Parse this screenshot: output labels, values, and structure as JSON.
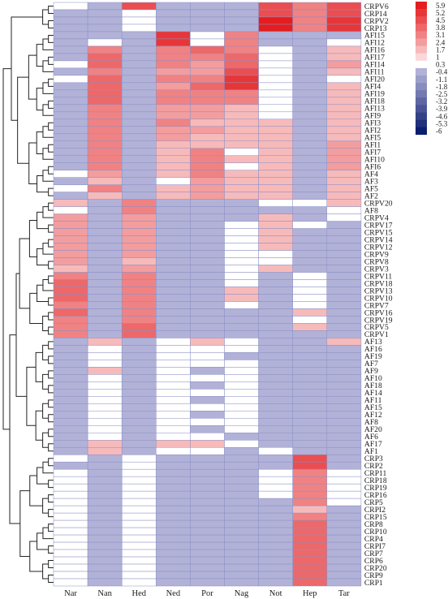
{
  "chart_data": {
    "type": "heatmap",
    "title": "",
    "xlabel": "",
    "ylabel": "",
    "columns": [
      "Nar",
      "Nan",
      "Hed",
      "Ned",
      "Por",
      "Nag",
      "Not",
      "Hep",
      "Tar"
    ],
    "rows": [
      "CRPV6",
      "CRP14",
      "CRPV2",
      "CRP13",
      "AFI15",
      "AFI12",
      "AFI16",
      "AFI17",
      "AFI14",
      "AFI11",
      "AFI20",
      "AFI4",
      "AFI19",
      "AFI18",
      "AFI13",
      "AFI9",
      "AFI3",
      "AFI2",
      "AFI5",
      "AFI1",
      "AFI7",
      "AFI10",
      "AFI6",
      "AF4",
      "AF3",
      "AF5",
      "AF2",
      "CRPV20",
      "AF8",
      "CRPV4",
      "CRPV17",
      "CRPV15",
      "CRPV14",
      "CRPV12",
      "CRPV9",
      "CRPV8",
      "CRPV3",
      "CRPV11",
      "CRPV18",
      "CRPV13",
      "CRPV10",
      "CRPV7",
      "CRPV16",
      "CRPV19",
      "CRPV5",
      "CRPV1",
      "AF13",
      "AF16",
      "AF19",
      "AF7",
      "AF9",
      "AF10",
      "AF18",
      "AF14",
      "AF11",
      "AF15",
      "AF12",
      "AF8",
      "AF20",
      "AF6",
      "AF17",
      "AF1",
      "CRP3",
      "CRP2",
      "CRP11",
      "CRP18",
      "CRP19",
      "CRP16",
      "CRP5",
      "CRPI2",
      "CRP15",
      "CRP8",
      "CRP10",
      "CRP4",
      "CRPI7",
      "CRP7",
      "CRP6",
      "CRP20",
      "CRP9",
      "CRP1"
    ],
    "values": [
      [
        0.3,
        -0.4,
        4.5,
        -0.4,
        -0.4,
        -0.4,
        4.5,
        3.1,
        4.5
      ],
      [
        -0.4,
        -0.4,
        0.3,
        -0.4,
        -0.4,
        -0.4,
        4.5,
        3.1,
        4.5
      ],
      [
        -0.4,
        -0.4,
        0.3,
        -0.4,
        -0.4,
        -0.4,
        5.9,
        3.1,
        5.2
      ],
      [
        -0.4,
        -0.4,
        0.3,
        -0.4,
        -0.4,
        -0.4,
        5.9,
        3.1,
        5.2
      ],
      [
        -0.4,
        -0.4,
        -0.4,
        5.2,
        0.3,
        3.1,
        -0.4,
        -0.4,
        -0.4
      ],
      [
        -0.4,
        0.3,
        -0.4,
        5.2,
        0.3,
        3.1,
        -0.4,
        -0.4,
        0.3
      ],
      [
        -0.4,
        3.1,
        -0.4,
        3.1,
        3.8,
        3.1,
        0.3,
        -0.4,
        1.7
      ],
      [
        -0.4,
        3.8,
        -0.4,
        3.1,
        3.1,
        3.8,
        0.3,
        -0.4,
        1.7
      ],
      [
        0.3,
        3.8,
        -0.4,
        3.1,
        2.4,
        3.8,
        0.3,
        -0.4,
        2.4
      ],
      [
        -0.4,
        3.1,
        -0.4,
        2.4,
        2.4,
        4.5,
        0.3,
        -0.4,
        1.7
      ],
      [
        0.3,
        3.8,
        -0.4,
        3.1,
        3.1,
        5.2,
        0.3,
        -0.4,
        0.3
      ],
      [
        -0.4,
        3.8,
        -0.4,
        2.4,
        3.8,
        5.2,
        0.3,
        -0.4,
        1.7
      ],
      [
        -0.4,
        3.8,
        -0.4,
        3.1,
        3.1,
        3.1,
        0.3,
        -0.4,
        1.7
      ],
      [
        -0.4,
        3.8,
        -0.4,
        3.1,
        3.1,
        3.1,
        0.3,
        -0.4,
        1.7
      ],
      [
        -0.4,
        3.1,
        -0.4,
        2.4,
        2.4,
        1.7,
        0.3,
        -0.4,
        1.7
      ],
      [
        -0.4,
        3.1,
        -0.4,
        2.4,
        2.4,
        1.7,
        0.3,
        -0.4,
        1.7
      ],
      [
        -0.4,
        3.1,
        -0.4,
        3.1,
        1.7,
        1.7,
        1.7,
        -0.4,
        1.7
      ],
      [
        -0.4,
        3.1,
        -0.4,
        2.4,
        2.4,
        1.7,
        1.7,
        -0.4,
        1.7
      ],
      [
        -0.4,
        3.1,
        -0.4,
        2.4,
        1.7,
        1.7,
        1.7,
        -0.4,
        1.7
      ],
      [
        -0.4,
        3.1,
        -0.4,
        1.7,
        1.7,
        1.7,
        1.7,
        -0.4,
        2.4
      ],
      [
        -0.4,
        3.1,
        -0.4,
        1.7,
        3.1,
        0.3,
        1.7,
        -0.4,
        2.4
      ],
      [
        -0.4,
        3.1,
        -0.4,
        1.7,
        3.1,
        1.7,
        1.7,
        -0.4,
        2.4
      ],
      [
        -0.4,
        3.1,
        -0.4,
        1.7,
        3.1,
        0.3,
        1.7,
        -0.4,
        2.4
      ],
      [
        0.3,
        2.4,
        -0.4,
        1.7,
        3.1,
        1.7,
        1.7,
        -0.4,
        1.7
      ],
      [
        -0.4,
        1.7,
        -0.4,
        0.3,
        2.4,
        1.7,
        1.7,
        -0.4,
        1.7
      ],
      [
        0.3,
        3.1,
        -0.4,
        1.7,
        2.4,
        1.7,
        1.7,
        -0.4,
        1.7
      ],
      [
        -0.4,
        1.7,
        -0.4,
        1.7,
        2.4,
        1.7,
        1.7,
        -0.4,
        1.7
      ],
      [
        1.7,
        -0.4,
        3.1,
        -0.4,
        -0.4,
        -0.4,
        0.3,
        0.3,
        1.7
      ],
      [
        0.3,
        -0.4,
        3.1,
        -0.4,
        -0.4,
        -0.4,
        -0.4,
        -0.4,
        0.3
      ],
      [
        2.4,
        -0.4,
        2.4,
        -0.4,
        -0.4,
        -0.4,
        1.7,
        -0.4,
        0.3
      ],
      [
        2.4,
        -0.4,
        2.4,
        -0.4,
        -0.4,
        0.3,
        1.7,
        0.3,
        -0.4
      ],
      [
        2.4,
        -0.4,
        2.4,
        -0.4,
        -0.4,
        0.3,
        1.7,
        -0.4,
        -0.4
      ],
      [
        2.4,
        -0.4,
        2.4,
        -0.4,
        -0.4,
        0.3,
        1.7,
        -0.4,
        -0.4
      ],
      [
        2.4,
        -0.4,
        2.4,
        -0.4,
        -0.4,
        0.3,
        1.7,
        -0.4,
        -0.4
      ],
      [
        2.4,
        -0.4,
        2.4,
        -0.4,
        -0.4,
        0.3,
        0.3,
        -0.4,
        -0.4
      ],
      [
        2.4,
        -0.4,
        1.7,
        -0.4,
        -0.4,
        0.3,
        0.3,
        -0.4,
        -0.4
      ],
      [
        1.7,
        -0.4,
        2.4,
        -0.4,
        -0.4,
        0.3,
        1.7,
        -0.4,
        -0.4
      ],
      [
        3.1,
        -0.4,
        3.1,
        -0.4,
        -0.4,
        0.3,
        -0.4,
        0.3,
        -0.4
      ],
      [
        3.8,
        -0.4,
        3.1,
        -0.4,
        -0.4,
        0.3,
        -0.4,
        0.3,
        -0.4
      ],
      [
        3.8,
        -0.4,
        3.1,
        -0.4,
        -0.4,
        1.7,
        -0.4,
        0.3,
        -0.4
      ],
      [
        3.8,
        -0.4,
        3.1,
        -0.4,
        -0.4,
        1.7,
        -0.4,
        0.3,
        -0.4
      ],
      [
        3.1,
        -0.4,
        3.1,
        -0.4,
        -0.4,
        0.3,
        -0.4,
        0.3,
        -0.4
      ],
      [
        3.8,
        -0.4,
        3.1,
        -0.4,
        -0.4,
        -0.4,
        -0.4,
        1.7,
        -0.4
      ],
      [
        3.1,
        -0.4,
        3.1,
        -0.4,
        -0.4,
        -0.4,
        -0.4,
        0.3,
        -0.4
      ],
      [
        3.1,
        -0.4,
        3.8,
        -0.4,
        -0.4,
        -0.4,
        -0.4,
        1.7,
        -0.4
      ],
      [
        3.1,
        -0.4,
        3.8,
        -0.4,
        -0.4,
        -0.4,
        -0.4,
        -0.4,
        -0.4
      ],
      [
        -0.4,
        1.7,
        -0.4,
        0.3,
        1.7,
        0.3,
        -0.4,
        -0.4,
        1.7
      ],
      [
        -0.4,
        0.3,
        -0.4,
        0.3,
        0.3,
        0.3,
        -0.4,
        -0.4,
        -0.4
      ],
      [
        -0.4,
        0.3,
        -0.4,
        0.3,
        0.3,
        -0.4,
        -0.4,
        -0.4,
        -0.4
      ],
      [
        -0.4,
        0.3,
        -0.4,
        0.3,
        0.3,
        0.3,
        -0.4,
        -0.4,
        -0.4
      ],
      [
        -0.4,
        1.7,
        -0.4,
        0.3,
        -0.4,
        0.3,
        -0.4,
        -0.4,
        -0.4
      ],
      [
        -0.4,
        0.3,
        -0.4,
        0.3,
        0.3,
        0.3,
        -0.4,
        -0.4,
        -0.4
      ],
      [
        -0.4,
        0.3,
        -0.4,
        0.3,
        -0.4,
        0.3,
        -0.4,
        -0.4,
        -0.4
      ],
      [
        -0.4,
        0.3,
        -0.4,
        0.3,
        0.3,
        0.3,
        -0.4,
        -0.4,
        -0.4
      ],
      [
        -0.4,
        0.3,
        -0.4,
        0.3,
        -0.4,
        0.3,
        -0.4,
        -0.4,
        -0.4
      ],
      [
        -0.4,
        0.3,
        -0.4,
        0.3,
        0.3,
        0.3,
        -0.4,
        -0.4,
        -0.4
      ],
      [
        -0.4,
        0.3,
        -0.4,
        0.3,
        -0.4,
        0.3,
        -0.4,
        -0.4,
        -0.4
      ],
      [
        -0.4,
        0.3,
        -0.4,
        0.3,
        0.3,
        0.3,
        -0.4,
        -0.4,
        -0.4
      ],
      [
        -0.4,
        0.3,
        -0.4,
        0.3,
        -0.4,
        0.3,
        -0.4,
        -0.4,
        -0.4
      ],
      [
        -0.4,
        0.3,
        -0.4,
        0.3,
        0.3,
        -0.4,
        -0.4,
        -0.4,
        -0.4
      ],
      [
        -0.4,
        1.7,
        -0.4,
        1.7,
        1.7,
        0.3,
        -0.4,
        -0.4,
        -0.4
      ],
      [
        -0.4,
        1.7,
        -0.4,
        0.3,
        0.3,
        -0.4,
        0.3,
        -0.4,
        -0.4
      ],
      [
        0.3,
        -0.4,
        0.3,
        -0.4,
        -0.4,
        -0.4,
        -0.4,
        4.5,
        -0.4
      ],
      [
        -0.4,
        -0.4,
        0.3,
        -0.4,
        -0.4,
        -0.4,
        -0.4,
        4.5,
        -0.4
      ],
      [
        0.3,
        -0.4,
        0.3,
        -0.4,
        -0.4,
        -0.4,
        0.3,
        3.1,
        0.3
      ],
      [
        0.3,
        -0.4,
        0.3,
        -0.4,
        -0.4,
        -0.4,
        0.3,
        3.1,
        0.3
      ],
      [
        0.3,
        -0.4,
        0.3,
        -0.4,
        -0.4,
        -0.4,
        0.3,
        3.1,
        0.3
      ],
      [
        0.3,
        -0.4,
        0.3,
        -0.4,
        -0.4,
        -0.4,
        0.3,
        3.1,
        0.3
      ],
      [
        0.3,
        -0.4,
        0.3,
        -0.4,
        -0.4,
        -0.4,
        -0.4,
        3.1,
        0.3
      ],
      [
        0.3,
        -0.4,
        0.3,
        -0.4,
        -0.4,
        -0.4,
        -0.4,
        1.7,
        -0.4
      ],
      [
        0.3,
        -0.4,
        0.3,
        -0.4,
        -0.4,
        -0.4,
        -0.4,
        3.1,
        -0.4
      ],
      [
        0.3,
        -0.4,
        0.3,
        -0.4,
        -0.4,
        -0.4,
        -0.4,
        3.8,
        -0.4
      ],
      [
        0.3,
        -0.4,
        0.3,
        -0.4,
        -0.4,
        -0.4,
        -0.4,
        3.8,
        -0.4
      ],
      [
        0.3,
        -0.4,
        0.3,
        -0.4,
        -0.4,
        -0.4,
        -0.4,
        3.8,
        -0.4
      ],
      [
        0.3,
        -0.4,
        0.3,
        -0.4,
        -0.4,
        -0.4,
        -0.4,
        3.8,
        -0.4
      ],
      [
        0.3,
        -0.4,
        0.3,
        -0.4,
        -0.4,
        -0.4,
        -0.4,
        3.8,
        -0.4
      ],
      [
        0.3,
        -0.4,
        0.3,
        -0.4,
        -0.4,
        -0.4,
        -0.4,
        3.8,
        -0.4
      ],
      [
        0.3,
        -0.4,
        0.3,
        -0.4,
        -0.4,
        -0.4,
        -0.4,
        3.8,
        -0.4
      ],
      [
        0.3,
        -0.4,
        0.3,
        -0.4,
        -0.4,
        -0.4,
        -0.4,
        3.8,
        -0.4
      ],
      [
        0.3,
        -0.4,
        0.3,
        -0.4,
        -0.4,
        -0.4,
        -0.4,
        3.8,
        -0.4
      ]
    ],
    "colorbar": {
      "ticks": [
        5.9,
        5.2,
        4.5,
        3.8,
        3.1,
        2.4,
        1.7,
        1,
        0.3,
        -0.4,
        -1.1,
        -1.8,
        -2.5,
        -3.2,
        -3.9,
        -4.6,
        -5.3,
        -6
      ],
      "range": [
        -6,
        6.2
      ],
      "low_color": "#0b1d6e",
      "mid_color": "#ffffff",
      "high_color": "#e41a1c"
    },
    "grid": true,
    "dendrogram": "left",
    "legend_position": "top-right"
  }
}
